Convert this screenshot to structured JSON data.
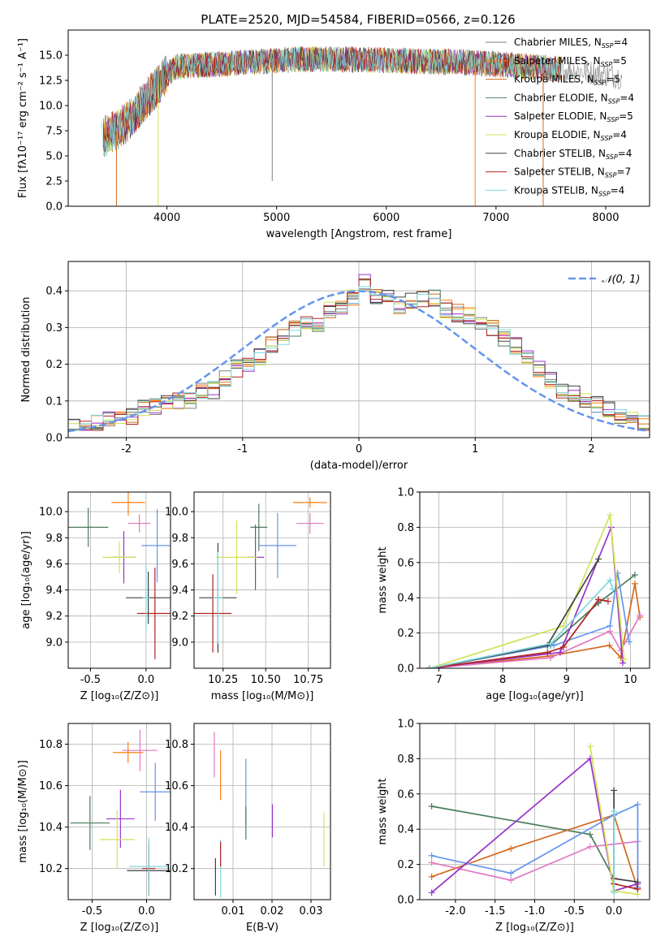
{
  "figure": {
    "title": "PLATE=2520, MJD=54584, FIBERID=0566, z=0.126"
  },
  "colors": {
    "series": [
      "#808080",
      "#ff7f0e",
      "#d2691e",
      "#4a7c59",
      "#9932cc",
      "#d4e157",
      "#404040",
      "#b22222",
      "#80d8dc"
    ],
    "ssp": [
      "#4a7c59",
      "#ff7f0e",
      "#e377c2",
      "#6495ed",
      "#9932cc",
      "#d4e157",
      "#404040",
      "#b22222",
      "#80d8dc",
      "#d2691e"
    ],
    "normal": "#6495ed"
  },
  "chart_data": [
    {
      "id": "spectrum",
      "type": "line",
      "title": "PLATE=2520, MJD=54584, FIBERID=0566, z=0.126",
      "xlabel": "wavelength [Angstrom, rest frame]",
      "ylabel": "Flux [fλ10⁻¹⁷ erg cm⁻² s⁻¹ A⁻¹]",
      "xlim": [
        3100,
        8400
      ],
      "ylim": [
        0,
        17.5
      ],
      "xticks": [
        4000,
        5000,
        6000,
        7000,
        8000
      ],
      "yticks": [
        0.0,
        2.5,
        5.0,
        7.5,
        10.0,
        12.5,
        15.0
      ],
      "legend_position": "upper-right",
      "legend": [
        {
          "label": "Chabrier MILES, N",
          "sub": "SSP",
          "suffix": "=4"
        },
        {
          "label": "Salpeter MILES, N",
          "sub": "SSP",
          "suffix": "=5"
        },
        {
          "label": "Kroupa MILES, N",
          "sub": "SSP",
          "suffix": "=5"
        },
        {
          "label": "Chabrier ELODIE, N",
          "sub": "SSP",
          "suffix": "=4"
        },
        {
          "label": "Salpeter ELODIE, N",
          "sub": "SSP",
          "suffix": "=5"
        },
        {
          "label": "Kroupa ELODIE, N",
          "sub": "SSP",
          "suffix": "=4"
        },
        {
          "label": "Chabrier STELIB, N",
          "sub": "SSP",
          "suffix": "=4"
        },
        {
          "label": "Salpeter STELIB, N",
          "sub": "SSP",
          "suffix": "=7"
        },
        {
          "label": "Kroupa STELIB, N",
          "sub": "SSP",
          "suffix": "=4"
        }
      ],
      "continuum": {
        "x": [
          3400,
          3550,
          3700,
          3800,
          3900,
          4000,
          4100,
          4300,
          4600,
          4900,
          5200,
          5600,
          6000,
          6300,
          6700,
          7000,
          7400,
          7800,
          8150
        ],
        "y": [
          6.8,
          7.6,
          9.0,
          10.5,
          11.8,
          13.1,
          13.9,
          14.0,
          14.2,
          14.4,
          14.6,
          14.6,
          14.5,
          14.4,
          14.3,
          14.1,
          13.8,
          13.4,
          12.9
        ]
      },
      "spikes": [
        {
          "x": 4960,
          "y": 2.5
        },
        {
          "x": 3540,
          "y": 0.0
        },
        {
          "x": 3920,
          "y": 0.0
        },
        {
          "x": 6810,
          "y": 0.0
        },
        {
          "x": 7430,
          "y": 0.0
        }
      ]
    },
    {
      "id": "residuals",
      "type": "histogram",
      "xlabel": "(data-model)/error",
      "ylabel": "Normed distribution",
      "xlim": [
        -2.5,
        2.5
      ],
      "ylim": [
        0,
        0.48
      ],
      "xticks": [
        -2,
        -1,
        0,
        1,
        2
      ],
      "yticks": [
        0.0,
        0.1,
        0.2,
        0.3,
        0.4
      ],
      "legend_position": "upper-right",
      "legend_label": "𝒩(0, 1)",
      "bin_edges_start": -2.5,
      "bin_width": 0.1,
      "reference_counts": [
        0.03,
        0.035,
        0.04,
        0.05,
        0.055,
        0.06,
        0.085,
        0.085,
        0.1,
        0.1,
        0.1,
        0.13,
        0.13,
        0.16,
        0.19,
        0.2,
        0.22,
        0.25,
        0.27,
        0.3,
        0.32,
        0.3,
        0.35,
        0.36,
        0.38,
        0.42,
        0.39,
        0.38,
        0.36,
        0.37,
        0.38,
        0.38,
        0.35,
        0.34,
        0.33,
        0.32,
        0.3,
        0.27,
        0.25,
        0.22,
        0.19,
        0.16,
        0.13,
        0.12,
        0.1,
        0.09,
        0.08,
        0.06,
        0.05,
        0.04
      ]
    },
    {
      "id": "age-vs-z",
      "type": "scatter",
      "xlabel": "Z [log₁₀(Z/Z⊙)]",
      "ylabel": "age  [log₁₀(age/yr)]",
      "xlim": [
        -0.7,
        0.22
      ],
      "ylim": [
        8.8,
        10.15
      ],
      "xticks": [
        -0.5,
        0.0
      ],
      "yticks": [
        9.0,
        9.2,
        9.4,
        9.6,
        9.8,
        10.0
      ],
      "points": [
        {
          "x": -0.52,
          "y": 9.88,
          "xerr": 0.18,
          "yerr": 0.15,
          "c": 0
        },
        {
          "x": -0.16,
          "y": 10.07,
          "xerr": 0.15,
          "yerr": 0.1,
          "c": 1
        },
        {
          "x": -0.06,
          "y": 9.91,
          "xerr": 0.1,
          "yerr": 0.07,
          "c": 2
        },
        {
          "x": 0.1,
          "y": 9.74,
          "xerr": 0.14,
          "yerr": 0.28,
          "c": 3
        },
        {
          "x": -0.2,
          "y": 9.65,
          "xerr": 0.1,
          "yerr": 0.2,
          "c": 4
        },
        {
          "x": -0.24,
          "y": 9.65,
          "xerr": 0.15,
          "yerr": 0.12,
          "c": 5
        },
        {
          "x": 0.02,
          "y": 9.34,
          "xerr": 0.2,
          "yerr": 0.2,
          "c": 6
        },
        {
          "x": 0.08,
          "y": 9.22,
          "xerr": 0.16,
          "yerr": 0.35,
          "c": 7
        },
        {
          "x": 0.0,
          "y": 9.34,
          "xerr": 0.03,
          "yerr": 0.25,
          "c": 8
        }
      ]
    },
    {
      "id": "age-vs-mass",
      "type": "scatter",
      "xlabel": "mass [log₁₀(M/M⊙)]",
      "ylabel": "",
      "xlim": [
        10.08,
        10.88
      ],
      "ylim": [
        8.8,
        10.15
      ],
      "xticks": [
        10.25,
        10.5,
        10.75
      ],
      "xticklabels": [
        "10.25",
        "10.50",
        "10.75"
      ],
      "yticks": [
        9.0,
        9.2,
        9.4,
        9.6,
        9.8,
        10.0
      ],
      "points": [
        {
          "x": 10.46,
          "y": 9.88,
          "xerr": 0.05,
          "yerr": 0.18,
          "c": 0
        },
        {
          "x": 10.76,
          "y": 10.07,
          "xerr": 0.1,
          "yerr": 0.04,
          "c": 1
        },
        {
          "x": 10.76,
          "y": 9.91,
          "xerr": 0.08,
          "yerr": 0.08,
          "c": 2
        },
        {
          "x": 10.57,
          "y": 9.74,
          "xerr": 0.11,
          "yerr": 0.25,
          "c": 3
        },
        {
          "x": 10.44,
          "y": 9.65,
          "xerr": 0.05,
          "yerr": 0.25,
          "c": 4
        },
        {
          "x": 10.33,
          "y": 9.65,
          "xerr": 0.12,
          "yerr": 0.28,
          "c": 5
        },
        {
          "x": 10.22,
          "y": 9.34,
          "xerr": 0.11,
          "yerr": 0.42,
          "c": 6
        },
        {
          "x": 10.19,
          "y": 9.22,
          "xerr": 0.11,
          "yerr": 0.3,
          "c": 7
        },
        {
          "x": 10.22,
          "y": 9.34,
          "xerr": 0.03,
          "yerr": 0.35,
          "c": 8
        }
      ]
    },
    {
      "id": "weight-vs-age",
      "type": "line",
      "xlabel": "age  [log₁₀(age/yr)]",
      "ylabel": "mass weight",
      "xlim": [
        6.7,
        10.3
      ],
      "ylim": [
        0,
        1.0
      ],
      "xticks": [
        7,
        8,
        9,
        10
      ],
      "yticks": [
        0.0,
        0.2,
        0.4,
        0.6,
        0.8,
        1.0
      ],
      "series": [
        {
          "c": 0,
          "x": [
            6.85,
            8.75,
            9.5,
            10.07
          ],
          "y": [
            0.0,
            0.13,
            0.37,
            0.53
          ]
        },
        {
          "c": 9,
          "x": [
            6.85,
            8.75,
            9.67,
            9.85,
            10.07,
            10.15
          ],
          "y": [
            0.0,
            0.07,
            0.13,
            0.06,
            0.48,
            0.29
          ]
        },
        {
          "c": 2,
          "x": [
            6.85,
            8.75,
            9.68,
            9.85,
            10.15
          ],
          "y": [
            0.0,
            0.06,
            0.21,
            0.1,
            0.3
          ]
        },
        {
          "c": 3,
          "x": [
            6.85,
            8.8,
            9.68,
            9.8,
            9.98
          ],
          "y": [
            0.0,
            0.13,
            0.24,
            0.54,
            0.15
          ]
        },
        {
          "c": 4,
          "x": [
            6.85,
            8.9,
            9.7,
            9.88
          ],
          "y": [
            0.0,
            0.09,
            0.8,
            0.03
          ]
        },
        {
          "c": 5,
          "x": [
            6.85,
            8.95,
            9.68,
            9.9
          ],
          "y": [
            0.0,
            0.24,
            0.87,
            0.05
          ]
        },
        {
          "c": 6,
          "x": [
            6.85,
            8.7,
            9.5
          ],
          "y": [
            0.0,
            0.13,
            0.62
          ]
        },
        {
          "c": 7,
          "x": [
            6.85,
            8.7,
            8.95,
            9.5,
            9.65
          ],
          "y": [
            0.0,
            0.09,
            0.12,
            0.39,
            0.38
          ]
        },
        {
          "c": 8,
          "x": [
            6.85,
            8.75,
            9.68,
            9.72
          ],
          "y": [
            0.0,
            0.14,
            0.5,
            0.45
          ]
        }
      ]
    },
    {
      "id": "mass-vs-z",
      "type": "scatter",
      "xlabel": "Z [log₁₀(Z/Z⊙)]",
      "ylabel": "mass [log₁₀(M/M⊙)]",
      "xlim": [
        -0.72,
        0.22
      ],
      "ylim": [
        10.05,
        10.9
      ],
      "xticks": [
        -0.5,
        0.0
      ],
      "yticks": [
        10.2,
        10.4,
        10.6,
        10.8
      ],
      "points": [
        {
          "x": -0.52,
          "y": 10.42,
          "xerr": 0.18,
          "yerr": 0.13,
          "c": 0
        },
        {
          "x": -0.17,
          "y": 10.76,
          "xerr": 0.14,
          "yerr": 0.05,
          "c": 1
        },
        {
          "x": -0.06,
          "y": 10.77,
          "xerr": 0.16,
          "yerr": 0.1,
          "c": 2
        },
        {
          "x": 0.08,
          "y": 10.57,
          "xerr": 0.14,
          "yerr": 0.14,
          "c": 3
        },
        {
          "x": -0.24,
          "y": 10.44,
          "xerr": 0.13,
          "yerr": 0.14,
          "c": 4
        },
        {
          "x": -0.27,
          "y": 10.34,
          "xerr": 0.16,
          "yerr": 0.14,
          "c": 5
        },
        {
          "x": 0.02,
          "y": 10.19,
          "xerr": 0.2,
          "yerr": 0.05,
          "c": 6
        },
        {
          "x": 0.02,
          "y": 10.2,
          "xerr": 0.06,
          "yerr": 0.13,
          "c": 7
        },
        {
          "x": 0.02,
          "y": 10.21,
          "xerr": 0.18,
          "yerr": 0.14,
          "c": 8
        }
      ]
    },
    {
      "id": "mass-vs-ebv",
      "type": "scatter",
      "xlabel": "E(B-V)",
      "ylabel": "",
      "xlim": [
        0.0,
        0.035
      ],
      "ylim": [
        10.05,
        10.9
      ],
      "xticks": [
        0.01,
        0.02,
        0.03
      ],
      "yticks": [
        10.2,
        10.4,
        10.6,
        10.8
      ],
      "points": [
        {
          "x": 0.0055,
          "y": 10.16,
          "xerr": 0,
          "yerr": 0.09,
          "c": 6
        },
        {
          "x": 0.0068,
          "y": 10.2,
          "xerr": 0,
          "yerr": 0.14,
          "c": 8
        },
        {
          "x": 0.0068,
          "y": 10.27,
          "xerr": 0,
          "yerr": 0.06,
          "c": 7
        },
        {
          "x": 0.0068,
          "y": 10.65,
          "xerr": 0,
          "yerr": 0.12,
          "c": 1
        },
        {
          "x": 0.0052,
          "y": 10.75,
          "xerr": 0,
          "yerr": 0.11,
          "c": 2
        },
        {
          "x": 0.0133,
          "y": 10.57,
          "xerr": 0,
          "yerr": 0.16,
          "c": 3
        },
        {
          "x": 0.0133,
          "y": 10.42,
          "xerr": 0,
          "yerr": 0.08,
          "c": 0
        },
        {
          "x": 0.0201,
          "y": 10.43,
          "xerr": 0,
          "yerr": 0.08,
          "c": 4
        },
        {
          "x": 0.0333,
          "y": 10.34,
          "xerr": 0,
          "yerr": 0.13,
          "c": 5
        }
      ]
    },
    {
      "id": "weight-vs-z",
      "type": "line",
      "xlabel": "Z [log₁₀(Z/Z⊙)]",
      "ylabel": "mass weight",
      "xlim": [
        -2.45,
        0.45
      ],
      "ylim": [
        0,
        1.0
      ],
      "xticks": [
        -2.0,
        -1.5,
        -1.0,
        -0.5,
        0.0
      ],
      "yticks": [
        0.0,
        0.2,
        0.4,
        0.6,
        0.8,
        1.0
      ],
      "series": [
        {
          "c": 0,
          "x": [
            -2.3,
            -0.3,
            0.0
          ],
          "y": [
            0.53,
            0.37,
            0.12
          ]
        },
        {
          "c": 9,
          "x": [
            -2.3,
            -1.3,
            0.0,
            0.3
          ],
          "y": [
            0.13,
            0.29,
            0.48,
            0.06
          ]
        },
        {
          "c": 2,
          "x": [
            -2.3,
            -1.3,
            -0.3,
            0.3,
            0.3
          ],
          "y": [
            0.21,
            0.11,
            0.3,
            0.33,
            0.07
          ]
        },
        {
          "c": 3,
          "x": [
            -2.3,
            -1.3,
            0.0,
            0.3,
            0.3
          ],
          "y": [
            0.25,
            0.15,
            0.48,
            0.54,
            0.07
          ]
        },
        {
          "c": 4,
          "x": [
            -2.3,
            -0.3,
            0.0,
            0.3
          ],
          "y": [
            0.04,
            0.8,
            0.05,
            0.09
          ]
        },
        {
          "c": 5,
          "x": [
            -0.3,
            0.0,
            0.3
          ],
          "y": [
            0.87,
            0.05,
            0.03
          ]
        },
        {
          "c": 6,
          "x": [
            0.0,
            0.0,
            0.3
          ],
          "y": [
            0.62,
            0.12,
            0.1
          ]
        },
        {
          "c": 7,
          "x": [
            0.0,
            0.0,
            0.3
          ],
          "y": [
            0.12,
            0.09,
            0.06
          ]
        },
        {
          "c": 8,
          "x": [
            0.0,
            0.0
          ],
          "y": [
            0.5,
            0.04
          ]
        }
      ]
    }
  ]
}
